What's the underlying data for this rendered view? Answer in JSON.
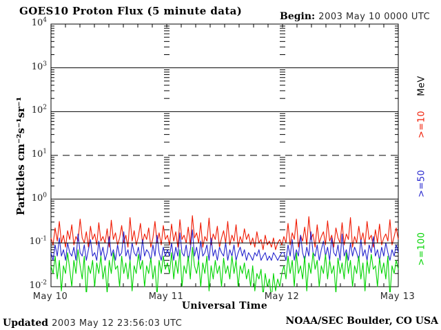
{
  "header": {
    "title": "GOES10 Proton Flux (5 minute data)",
    "begin_label": "Begin:",
    "begin_value": "2003 May 10 0000 UTC"
  },
  "axes": {
    "y_title": "Particles cm⁻²s⁻¹sr⁻¹",
    "x_title": "Universal Time"
  },
  "side_labels": [
    {
      "label": "MeV",
      "color": "#000000"
    },
    {
      "label": ">=10",
      "color": "#f01800"
    },
    {
      "label": ">=50",
      "color": "#2323cd"
    },
    {
      "label": ">=100",
      "color": "#00d400"
    }
  ],
  "footer": {
    "updated_label": "Updated",
    "updated_value": "2003 May 12 23:56:03 UTC",
    "credit": "NOAA/SEC Boulder, CO USA"
  },
  "chart_data": {
    "type": "line",
    "title": "GOES10 Proton Flux (5 minute data)",
    "xlabel": "Universal Time",
    "ylabel": "Particles cm^-2 s^-1 sr^-1",
    "y_scale": "log",
    "y_log_range": [
      -2,
      4
    ],
    "yticks": [
      "10^4",
      "10^3",
      "10^2",
      "10^1",
      "10^0",
      "10^-1",
      "10^-2"
    ],
    "xticks": [
      "May 10",
      "May 11",
      "May 12",
      "May 13"
    ],
    "x_minor_tick_hours": 3,
    "hlines": [
      {
        "log10": 3,
        "style": "solid"
      },
      {
        "log10": 2,
        "style": "solid"
      },
      {
        "log10": 1,
        "style": "dashed"
      },
      {
        "log10": 0,
        "style": "solid"
      },
      {
        "log10": -1,
        "style": "solid"
      }
    ],
    "legend_position": "right-margin",
    "series": [
      {
        "name": ">=10 MeV",
        "color": "#f01800",
        "values": [
          0.13,
          0.09,
          0.22,
          0.11,
          0.31,
          0.1,
          0.15,
          0.08,
          0.19,
          0.12,
          0.26,
          0.09,
          0.14,
          0.11,
          0.35,
          0.13,
          0.1,
          0.18,
          0.08,
          0.24,
          0.12,
          0.16,
          0.09,
          0.29,
          0.11,
          0.14,
          0.1,
          0.21,
          0.08,
          0.33,
          0.12,
          0.17,
          0.09,
          0.13,
          0.25,
          0.1,
          0.15,
          0.08,
          0.38,
          0.11,
          0.19,
          0.09,
          0.14,
          0.28,
          0.1,
          0.16,
          0.12,
          0.22,
          0.08,
          0.13,
          0.31,
          0.1,
          0.17,
          0.09,
          0.25,
          0.12,
          0.15,
          0.09,
          0.27,
          0.11,
          0.18,
          0.08,
          0.34,
          0.12,
          0.15,
          0.1,
          0.23,
          0.09,
          0.42,
          0.13,
          0.17,
          0.1,
          0.29,
          0.08,
          0.14,
          0.11,
          0.37,
          0.09,
          0.16,
          0.12,
          0.24,
          0.08,
          0.13,
          0.19,
          0.1,
          0.31,
          0.09,
          0.15,
          0.11,
          0.26,
          0.08,
          0.14,
          0.1,
          0.21,
          0.12,
          0.16,
          0.09,
          0.13,
          0.08,
          0.18,
          0.1,
          0.12,
          0.07,
          0.15,
          0.09,
          0.11,
          0.08,
          0.13,
          0.07,
          0.1,
          0.12,
          0.09,
          0.14,
          0.1,
          0.28,
          0.09,
          0.17,
          0.12,
          0.35,
          0.08,
          0.15,
          0.11,
          0.23,
          0.09,
          0.4,
          0.12,
          0.16,
          0.08,
          0.26,
          0.1,
          0.14,
          0.18,
          0.09,
          0.32,
          0.11,
          0.15,
          0.08,
          0.22,
          0.13,
          0.1,
          0.29,
          0.09,
          0.16,
          0.12,
          0.38,
          0.08,
          0.14,
          0.1,
          0.24,
          0.11,
          0.17,
          0.09,
          0.31,
          0.12,
          0.15,
          0.08,
          0.2,
          0.1,
          0.27,
          0.09,
          0.13,
          0.16,
          0.11,
          0.34,
          0.09,
          0.14,
          0.22,
          0.12
        ]
      },
      {
        "name": ">=50 MeV",
        "color": "#2323cd",
        "values": [
          0.06,
          0.04,
          0.09,
          0.05,
          0.13,
          0.05,
          0.07,
          0.04,
          0.1,
          0.06,
          0.05,
          0.08,
          0.04,
          0.16,
          0.06,
          0.05,
          0.09,
          0.04,
          0.07,
          0.12,
          0.05,
          0.06,
          0.04,
          0.11,
          0.05,
          0.08,
          0.04,
          0.06,
          0.14,
          0.05,
          0.07,
          0.04,
          0.09,
          0.05,
          0.06,
          0.18,
          0.05,
          0.07,
          0.04,
          0.1,
          0.06,
          0.05,
          0.08,
          0.04,
          0.12,
          0.05,
          0.07,
          0.06,
          0.04,
          0.09,
          0.05,
          0.15,
          0.06,
          0.04,
          0.08,
          0.05,
          0.07,
          0.05,
          0.1,
          0.04,
          0.08,
          0.05,
          0.17,
          0.06,
          0.05,
          0.09,
          0.04,
          0.07,
          0.2,
          0.05,
          0.08,
          0.04,
          0.11,
          0.05,
          0.06,
          0.09,
          0.04,
          0.13,
          0.05,
          0.07,
          0.04,
          0.08,
          0.06,
          0.05,
          0.1,
          0.04,
          0.07,
          0.05,
          0.09,
          0.04,
          0.06,
          0.08,
          0.05,
          0.07,
          0.04,
          0.06,
          0.05,
          0.04,
          0.06,
          0.05,
          0.07,
          0.04,
          0.05,
          0.06,
          0.04,
          0.05,
          0.04,
          0.06,
          0.05,
          0.04,
          0.05,
          0.06,
          0.06,
          0.04,
          0.09,
          0.05,
          0.12,
          0.04,
          0.07,
          0.05,
          0.15,
          0.06,
          0.04,
          0.08,
          0.05,
          0.18,
          0.06,
          0.05,
          0.09,
          0.04,
          0.07,
          0.11,
          0.05,
          0.08,
          0.04,
          0.13,
          0.06,
          0.05,
          0.09,
          0.04,
          0.16,
          0.05,
          0.07,
          0.04,
          0.1,
          0.05,
          0.08,
          0.06,
          0.04,
          0.12,
          0.05,
          0.07,
          0.04,
          0.09,
          0.06,
          0.14,
          0.05,
          0.07,
          0.04,
          0.08,
          0.05,
          0.1,
          0.06,
          0.04,
          0.07,
          0.05,
          0.09,
          0.06
        ]
      },
      {
        "name": ">=100 MeV",
        "color": "#00d400",
        "values": [
          0.03,
          0.02,
          0.05,
          0.015,
          0.04,
          0.008,
          0.03,
          0.02,
          0.06,
          0.025,
          0.01,
          0.04,
          0.02,
          0.07,
          0.03,
          0.015,
          0.05,
          0.006,
          0.03,
          0.02,
          0.04,
          0.01,
          0.035,
          0.02,
          0.05,
          0.015,
          0.03,
          0.007,
          0.04,
          0.02,
          0.06,
          0.025,
          0.03,
          0.01,
          0.05,
          0.02,
          0.035,
          0.015,
          0.04,
          0.008,
          0.03,
          0.02,
          0.055,
          0.025,
          0.04,
          0.01,
          0.03,
          0.02,
          0.045,
          0.015,
          0.03,
          0.006,
          0.04,
          0.02,
          0.05,
          0.025,
          0.035,
          0.02,
          0.06,
          0.015,
          0.04,
          0.02,
          0.07,
          0.01,
          0.03,
          0.02,
          0.05,
          0.015,
          0.08,
          0.03,
          0.02,
          0.04,
          0.01,
          0.035,
          0.02,
          0.05,
          0.008,
          0.03,
          0.015,
          0.04,
          0.02,
          0.03,
          0.01,
          0.045,
          0.02,
          0.03,
          0.015,
          0.05,
          0.02,
          0.04,
          0.01,
          0.03,
          0.02,
          0.035,
          0.015,
          0.025,
          0.01,
          0.03,
          0.008,
          0.02,
          0.015,
          0.025,
          0.006,
          0.02,
          0.01,
          0.015,
          0.005,
          0.02,
          0.008,
          0.015,
          0.01,
          0.02,
          0.03,
          0.015,
          0.05,
          0.02,
          0.04,
          0.01,
          0.06,
          0.02,
          0.03,
          0.015,
          0.05,
          0.008,
          0.035,
          0.02,
          0.06,
          0.025,
          0.04,
          0.01,
          0.03,
          0.02,
          0.055,
          0.015,
          0.04,
          0.02,
          0.03,
          0.007,
          0.045,
          0.02,
          0.035,
          0.015,
          0.06,
          0.02,
          0.04,
          0.01,
          0.03,
          0.02,
          0.05,
          0.015,
          0.035,
          0.008,
          0.04,
          0.02,
          0.055,
          0.025,
          0.03,
          0.01,
          0.045,
          0.02,
          0.035,
          0.015,
          0.05,
          0.006,
          0.03,
          0.02,
          0.04,
          0.025
        ]
      }
    ]
  }
}
